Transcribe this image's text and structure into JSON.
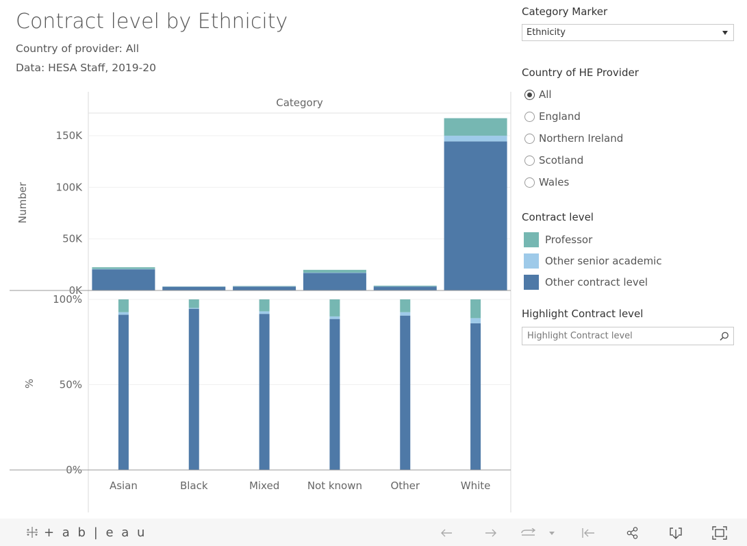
{
  "header": {
    "title": "Contract level by Ethnicity",
    "subtitle1": "Country of provider: All",
    "subtitle2": "Data: HESA Staff, 2019-20"
  },
  "filters": {
    "category_marker": {
      "label": "Category Marker",
      "selected": "Ethnicity"
    },
    "country": {
      "label": "Country of HE Provider",
      "options": [
        "All",
        "England",
        "Northern Ireland",
        "Scotland",
        "Wales"
      ],
      "selected": "All"
    },
    "legend": {
      "title": "Contract level",
      "items": [
        {
          "label": "Professor",
          "color": "#76b7b2"
        },
        {
          "label": "Other senior academic",
          "color": "#9ecae9"
        },
        {
          "label": "Other contract level",
          "color": "#4e79a7"
        }
      ]
    },
    "highlight": {
      "label": "Highlight Contract level",
      "placeholder": "Highlight Contract level",
      "icon": "search-icon"
    }
  },
  "chart_data": {
    "type": "bar",
    "stacked": true,
    "column_header": "Category",
    "categories": [
      "Asian",
      "Black",
      "Mixed",
      "Not known",
      "Other",
      "White"
    ],
    "panels": [
      {
        "ylabel": "Number",
        "ylim": [
          0,
          170000
        ],
        "yticks": [
          0,
          50000,
          100000,
          150000
        ],
        "ytick_labels": [
          "0K",
          "50K",
          "100K",
          "150K"
        ],
        "series": [
          {
            "name": "Other contract level",
            "values": [
              20500,
              3600,
              3800,
              17000,
              3800,
              144500
            ]
          },
          {
            "name": "Other senior academic",
            "values": [
              300,
              60,
              100,
              300,
              150,
              5500
            ]
          },
          {
            "name": "Professor",
            "values": [
              1700,
              200,
              400,
              2700,
              700,
              17000
            ]
          }
        ]
      },
      {
        "ylabel": "%",
        "ylim": [
          0,
          100
        ],
        "yticks": [
          0,
          50,
          100
        ],
        "ytick_labels": [
          "0%",
          "50%",
          "100%"
        ],
        "series": [
          {
            "name": "Other contract level",
            "values": [
              91.0,
              94.5,
              91.5,
              88.5,
              90.5,
              86.0
            ]
          },
          {
            "name": "Other senior academic",
            "values": [
              1.5,
              0.5,
              1.5,
              1.5,
              2.0,
              3.0
            ]
          },
          {
            "name": "Professor",
            "values": [
              7.5,
              5.0,
              7.0,
              10.0,
              7.5,
              11.0
            ]
          }
        ]
      }
    ],
    "grid": true,
    "legend": "right"
  },
  "footer": {
    "logo_text": "+ a b | e a u",
    "icons": [
      "undo-icon",
      "redo-icon",
      "revert-icon",
      "dropdown-arrow-icon",
      "reset-icon",
      "share-icon",
      "download-icon",
      "fullscreen-icon"
    ]
  }
}
